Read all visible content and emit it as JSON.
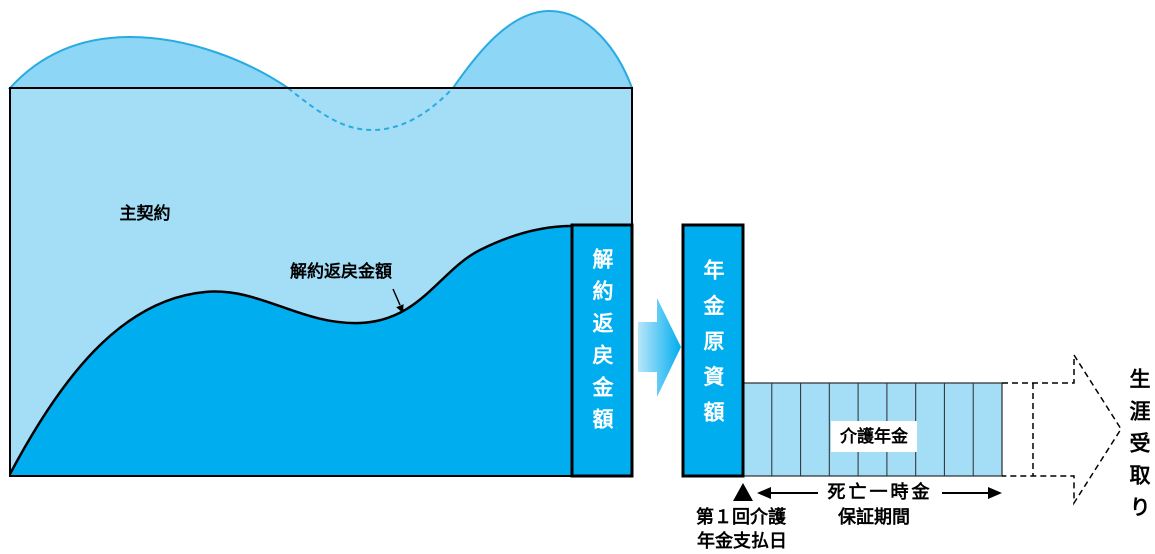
{
  "diagram": {
    "main_contract": "主契約",
    "surrender_value_curve_label": "解約返戻金額",
    "surrender_value_box_label": "解約返戻金額",
    "annuity_principal": "年金原資額",
    "care_annuity": "介護年金",
    "death_lump_sum": "死亡一時金",
    "guarantee_period": "保証期間",
    "first_payment_line1": "第１回介護",
    "first_payment_line2": "年金支払日",
    "lifetime_receipt": "生涯受取り"
  },
  "colors": {
    "contract_fill": "#a3ddf6",
    "wave_fill": "#8dd6f5",
    "wave_stroke": "#29abe2",
    "value_fill": "#00aeef",
    "outline": "#000000",
    "box_text": "#ffffff",
    "arrow_start": "#b8e6f9",
    "arrow_end": "#00aeef"
  }
}
